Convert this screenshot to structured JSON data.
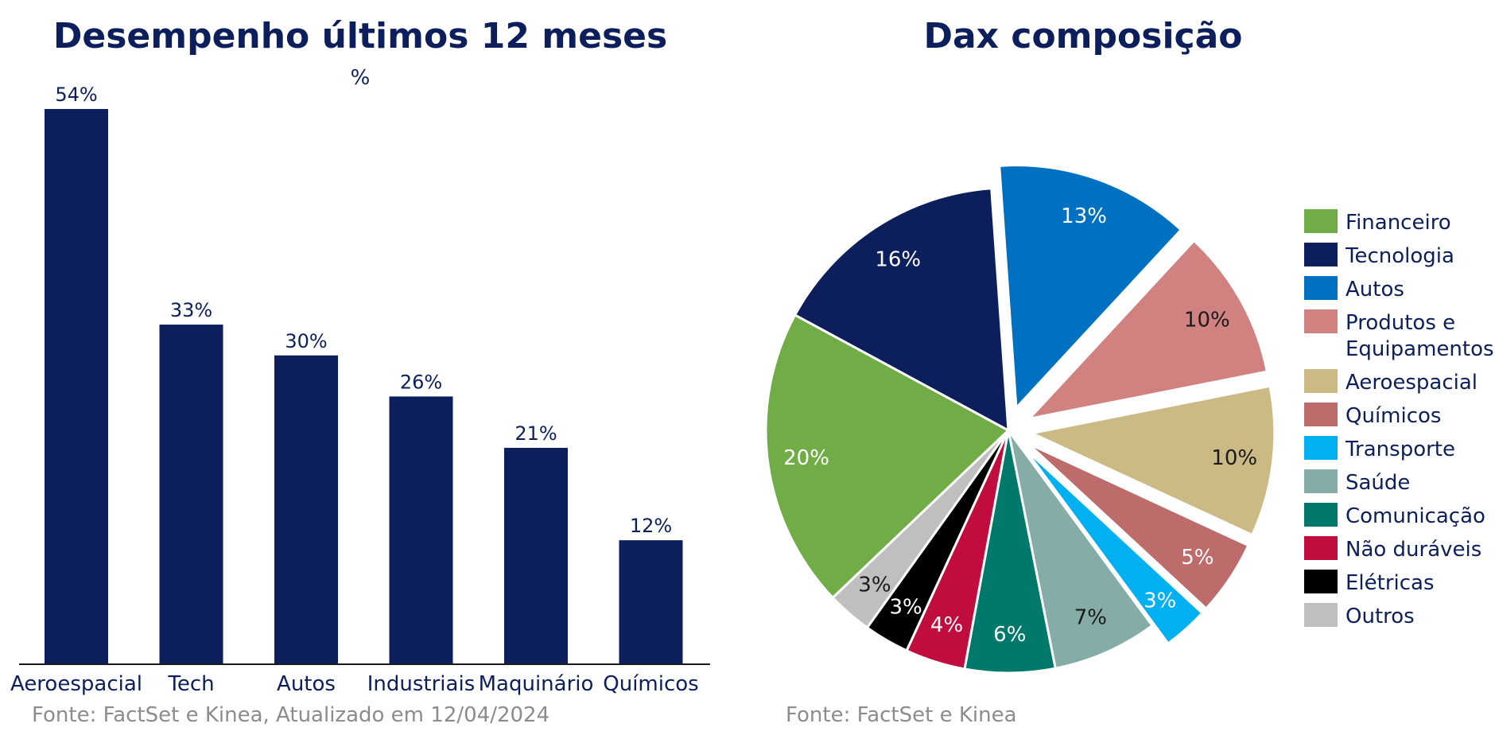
{
  "chart_data": [
    {
      "type": "bar",
      "title": "Desempenho últimos 12 meses",
      "unit_label": "%",
      "categories": [
        "Aeroespacial",
        "Tech",
        "Autos",
        "Industriais",
        "Maquinário",
        "Químicos"
      ],
      "values": [
        54,
        33,
        30,
        26,
        21,
        12
      ],
      "value_labels": [
        "54%",
        "33%",
        "30%",
        "26%",
        "21%",
        "12%"
      ],
      "ylim": [
        0,
        54
      ],
      "grid": false,
      "color": "#0c1f5c",
      "source": "Fonte: FactSet e Kinea, Atualizado em 12/04/2024"
    },
    {
      "type": "pie",
      "title": "Dax composição",
      "legend_position": "right",
      "slices": [
        {
          "label": "Autos",
          "value": 13,
          "value_label": "13%",
          "color": "#0070c0",
          "label_color": "#ffffff",
          "exploded": true
        },
        {
          "label": "Produtos e Equipamentos",
          "legend_lines": [
            "Produtos e",
            "Equipamentos"
          ],
          "value": 10,
          "value_label": "10%",
          "color": "#d08180",
          "label_color": "#1a1a1a",
          "exploded": true
        },
        {
          "label": "Aeroespacial",
          "value": 10,
          "value_label": "10%",
          "color": "#cbba84",
          "label_color": "#1a1a1a",
          "exploded": true
        },
        {
          "label": "Químicos",
          "value": 5,
          "value_label": "5%",
          "color": "#bd6b6b",
          "label_color": "#ffffff",
          "exploded": true
        },
        {
          "label": "Transporte",
          "value": 3,
          "value_label": "3%",
          "color": "#00b0f0",
          "label_color": "#ffffff",
          "exploded": true
        },
        {
          "label": "Saúde",
          "value": 7,
          "value_label": "7%",
          "color": "#85aca7",
          "label_color": "#1a1a1a",
          "exploded": false
        },
        {
          "label": "Comunicação",
          "value": 6,
          "value_label": "6%",
          "color": "#00796b",
          "label_color": "#ffffff",
          "exploded": false
        },
        {
          "label": "Não duráveis",
          "value": 4,
          "value_label": "4%",
          "color": "#c00d3e",
          "label_color": "#ffffff",
          "exploded": false
        },
        {
          "label": "Elétricas",
          "value": 3,
          "value_label": "3%",
          "color": "#000000",
          "label_color": "#ffffff",
          "exploded": false
        },
        {
          "label": "Outros",
          "value": 3,
          "value_label": "3%",
          "color": "#bfbfbf",
          "label_color": "#1a1a1a",
          "exploded": false
        },
        {
          "label": "Financeiro",
          "value": 20,
          "value_label": "20%",
          "color": "#70ad47",
          "label_color": "#ffffff",
          "exploded": false
        },
        {
          "label": "Tecnologia",
          "value": 16,
          "value_label": "16%",
          "color": "#0c1f5c",
          "label_color": "#ffffff",
          "exploded": false
        }
      ],
      "legend_order": [
        "Financeiro",
        "Tecnologia",
        "Autos",
        "Produtos e Equipamentos",
        "Aeroespacial",
        "Químicos",
        "Transporte",
        "Saúde",
        "Comunicação",
        "Não duráveis",
        "Elétricas",
        "Outros"
      ],
      "source": "Fonte: FactSet e Kinea"
    }
  ]
}
